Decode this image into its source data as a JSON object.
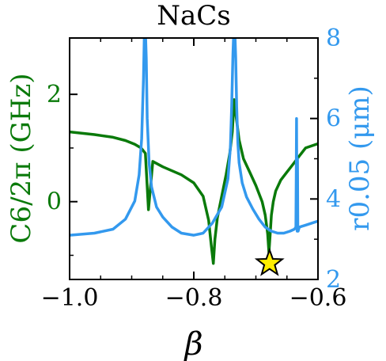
{
  "chart_data": {
    "type": "line",
    "title": "NaCs",
    "xlabel": "β",
    "ylabel_left": "C6/2π (GHz)",
    "ylabel_right": "r0.05 (μm)",
    "xlim": [
      -1.0,
      -0.6
    ],
    "ylim_left": [
      -1.45,
      3.05
    ],
    "ylim_right": [
      2,
      8
    ],
    "x_ticks": [
      -1.0,
      -0.8,
      -0.6
    ],
    "x_tick_labels": [
      "−1.0",
      "−0.8",
      "−0.6"
    ],
    "y_left_ticks": [
      0,
      2
    ],
    "y_left_tick_labels": [
      "0",
      "2"
    ],
    "y_right_ticks": [
      2,
      4,
      6,
      8
    ],
    "y_right_tick_labels": [
      "2",
      "4",
      "6",
      "8"
    ],
    "grid": false,
    "colors": {
      "c6": "#0a7a0a",
      "r005": "#3399ee",
      "star": "#ffee00"
    },
    "series": [
      {
        "axis": "left",
        "x": [
          -1.0,
          -0.96,
          -0.93,
          -0.91,
          -0.895,
          -0.885,
          -0.878,
          -0.873,
          -0.866,
          -0.85,
          -0.82,
          -0.8,
          -0.785,
          -0.776,
          -0.772,
          -0.7685,
          -0.766,
          -0.762,
          -0.755,
          -0.748,
          -0.742,
          -0.738,
          -0.735,
          -0.732,
          -0.727,
          -0.72,
          -0.71,
          -0.7,
          -0.69,
          -0.685,
          -0.681,
          -0.679,
          -0.677,
          -0.675,
          -0.672,
          -0.668,
          -0.66,
          -0.65,
          -0.64,
          -0.63,
          -0.62,
          -0.6
        ],
        "values": [
          1.3,
          1.25,
          1.2,
          1.14,
          1.07,
          1.0,
          0.9,
          -0.15,
          0.75,
          0.65,
          0.5,
          0.35,
          0.1,
          -0.35,
          -0.8,
          -1.15,
          -0.7,
          -0.3,
          0.1,
          0.5,
          0.9,
          1.3,
          1.9,
          1.6,
          1.15,
          0.8,
          0.55,
          0.3,
          0.0,
          -0.25,
          -0.6,
          -0.95,
          -0.6,
          -0.25,
          0.0,
          0.2,
          0.4,
          0.55,
          0.7,
          0.85,
          1.0,
          1.08
        ]
      },
      {
        "axis": "right",
        "x": [
          -1.0,
          -0.96,
          -0.93,
          -0.91,
          -0.895,
          -0.888,
          -0.884,
          -0.881,
          -0.8795,
          -0.878,
          -0.8765,
          -0.875,
          -0.872,
          -0.868,
          -0.86,
          -0.85,
          -0.835,
          -0.82,
          -0.8,
          -0.785,
          -0.77,
          -0.755,
          -0.745,
          -0.741,
          -0.739,
          -0.737,
          -0.7355,
          -0.734,
          -0.7325,
          -0.731,
          -0.729,
          -0.727,
          -0.722,
          -0.715,
          -0.705,
          -0.695,
          -0.685,
          -0.675,
          -0.665,
          -0.655,
          -0.645,
          -0.638,
          -0.6355,
          -0.635,
          -0.6345,
          -0.634,
          -0.6335,
          -0.633,
          -0.6325,
          -0.632,
          -0.63,
          -0.62,
          -0.6
        ],
        "values": [
          3.1,
          3.15,
          3.25,
          3.5,
          3.95,
          4.6,
          5.5,
          7.0,
          8.2,
          8.2,
          7.5,
          6.0,
          4.9,
          4.3,
          3.8,
          3.55,
          3.3,
          3.15,
          3.1,
          3.15,
          3.4,
          3.8,
          4.5,
          5.3,
          6.3,
          7.6,
          8.2,
          8.2,
          7.5,
          6.3,
          5.4,
          4.9,
          4.4,
          4.05,
          3.75,
          3.5,
          3.3,
          3.2,
          3.15,
          3.15,
          3.2,
          3.25,
          3.3,
          4.5,
          6.0,
          4.0,
          3.2,
          5.0,
          3.3,
          3.2,
          3.3,
          3.35,
          3.45
        ]
      }
    ],
    "markers": [
      {
        "type": "star",
        "axis": "left",
        "x": -0.678,
        "value": -1.15
      }
    ]
  }
}
